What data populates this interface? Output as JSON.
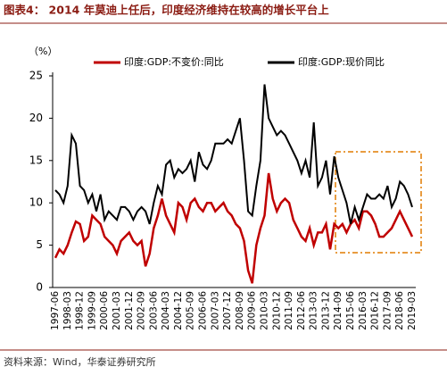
{
  "chart_data": {
    "type": "line",
    "title": "图表4： 2014 年莫迪上任后，印度经济维持在较高的增长平台上",
    "y_label": "（%）",
    "source": "资料来源：Wind，华泰证券研究所",
    "categories": [
      "1997-06",
      null,
      null,
      "1998-03",
      null,
      null,
      "1998-12",
      null,
      null,
      "1999-09",
      null,
      null,
      "2000-06",
      null,
      null,
      "2001-03",
      null,
      null,
      "2001-12",
      null,
      null,
      "2002-09",
      null,
      null,
      "2003-06",
      null,
      null,
      "2004-03",
      null,
      null,
      "2004-12",
      null,
      null,
      "2005-09",
      null,
      null,
      "2006-06",
      null,
      null,
      "2007-03",
      null,
      null,
      "2007-12",
      null,
      null,
      "2008-09",
      null,
      null,
      "2009-06",
      null,
      null,
      "2010-03",
      null,
      null,
      "2010-12",
      null,
      null,
      "2011-09",
      null,
      null,
      "2012-06",
      null,
      null,
      "2013-03",
      null,
      null,
      "2013-12",
      null,
      null,
      "2014-09",
      null,
      null,
      "2015-06",
      null,
      null,
      "2016-03",
      null,
      null,
      "2016-12",
      null,
      null,
      "2017-09",
      null,
      null,
      "2018-06",
      null,
      null,
      "2019-03"
    ],
    "series": [
      {
        "name": "印度:GDP:不变价:同比",
        "color": "#c00000",
        "values": [
          3.5,
          4.5,
          4.0,
          5.0,
          6.5,
          7.8,
          7.5,
          5.5,
          6.0,
          8.5,
          8.0,
          7.5,
          6.0,
          5.5,
          5.0,
          4.0,
          5.5,
          6.0,
          6.5,
          5.5,
          5.0,
          5.5,
          2.5,
          4.0,
          7.0,
          8.5,
          10.5,
          8.5,
          7.5,
          6.5,
          10.0,
          9.5,
          8.0,
          10.0,
          10.5,
          9.5,
          9.0,
          10.0,
          10.0,
          9.0,
          9.5,
          10.0,
          9.0,
          8.5,
          7.5,
          7.0,
          5.5,
          2.0,
          0.5,
          5.0,
          7.0,
          8.5,
          13.5,
          10.5,
          9.0,
          10.0,
          10.5,
          10.0,
          8.0,
          7.0,
          6.0,
          5.5,
          7.0,
          5.0,
          6.5,
          6.5,
          7.5,
          4.5,
          7.5,
          7.0,
          7.5,
          6.5,
          7.5,
          8.0,
          7.0,
          9.0,
          9.0,
          8.5,
          7.5,
          6.0,
          6.0,
          6.5,
          7.0,
          8.0,
          9.0,
          8.0,
          7.0,
          6.0
        ]
      },
      {
        "name": "印度:GDP:现价同比",
        "color": "#000000",
        "values": [
          11.5,
          11.0,
          10.0,
          12.0,
          18.0,
          17.0,
          12.0,
          11.5,
          10.0,
          11.0,
          9.0,
          11.0,
          8.0,
          9.0,
          8.5,
          8.0,
          9.5,
          9.5,
          9.0,
          8.0,
          9.0,
          9.5,
          9.0,
          7.5,
          10.0,
          12.0,
          11.0,
          14.5,
          15.0,
          13.0,
          14.0,
          13.5,
          14.0,
          15.0,
          12.5,
          16.0,
          14.5,
          14.0,
          15.0,
          17.0,
          17.0,
          17.0,
          17.5,
          17.0,
          18.5,
          20.0,
          15.0,
          9.0,
          8.5,
          12.0,
          15.0,
          24.0,
          20.0,
          19.0,
          18.0,
          18.5,
          18.0,
          17.0,
          16.0,
          15.0,
          13.5,
          15.0,
          13.0,
          19.5,
          12.0,
          13.0,
          15.0,
          11.0,
          15.5,
          13.0,
          11.5,
          10.0,
          7.5,
          9.5,
          8.0,
          9.5,
          11.0,
          10.5,
          10.5,
          11.0,
          10.5,
          12.0,
          9.5,
          10.5,
          12.5,
          12.0,
          11.0,
          9.5
        ]
      }
    ],
    "ylim": [
      0,
      25
    ],
    "yticks": [
      0,
      5,
      10,
      15,
      20,
      25
    ]
  }
}
